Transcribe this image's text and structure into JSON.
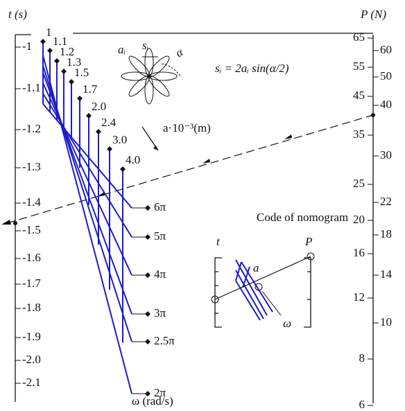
{
  "t_axis": {
    "label": "t (s)",
    "ticks": [
      "-1",
      "-1.1",
      "-1.2",
      "-1.3",
      "-1.4",
      "-1.5",
      "-1.6",
      "-1.7",
      "-1.8",
      "-1.9",
      "-2.0",
      "-2.1"
    ]
  },
  "p_axis": {
    "label": "P (N)",
    "left_ticks": [
      "65",
      "55",
      "45",
      "35",
      "25",
      "20",
      "16",
      "12",
      "8",
      "6"
    ],
    "right_ticks": [
      "60",
      "50",
      "40",
      "30",
      "22",
      "18",
      "14",
      "10"
    ]
  },
  "a_scale": {
    "label": "a·10⁻³(m)",
    "values": [
      "1",
      "1.1",
      "1.2",
      "1.3",
      "1.5",
      "1.7",
      "2.0",
      "2.4",
      "3.0",
      "4.0"
    ]
  },
  "omega_scale": {
    "label": "ω (rad/s)",
    "values": [
      "6π",
      "5π",
      "4π",
      "3π",
      "2.5π",
      "2π"
    ]
  },
  "flower": {
    "a_label": "aᵢ",
    "s_label": "sᵢ",
    "angle_label": "α"
  },
  "formula": "sᵢ = 2aᵢ sin(α/2)",
  "inset": {
    "title": "Code of nomogram",
    "t": "t",
    "P": "P",
    "a": "a",
    "omega": "ω"
  }
}
